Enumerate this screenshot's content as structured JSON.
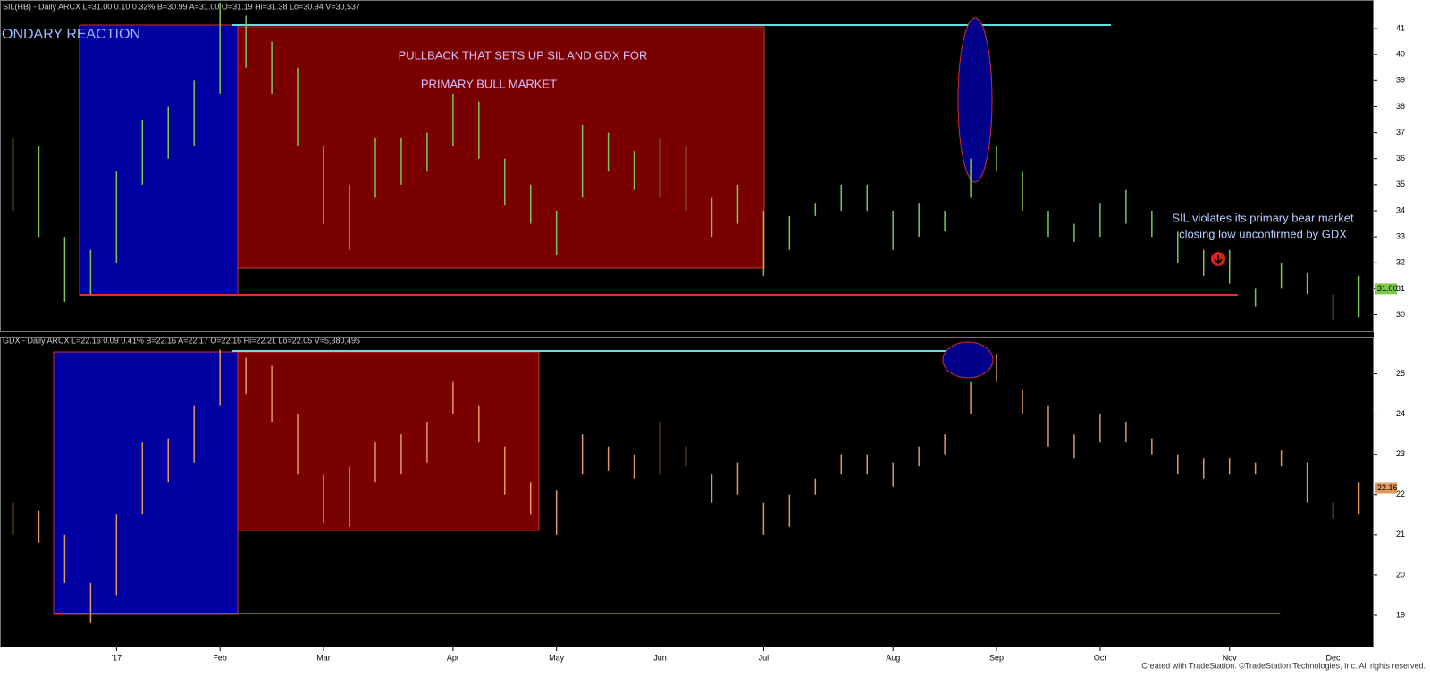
{
  "chart_data": [
    {
      "type": "ohlc",
      "header": "SIL(HB) - Daily  ARCX  L=31.00  0.10  0.32%  B=30.99  A=31.00  O=31.19  Hi=31.38  Lo=30.94  V=30,537",
      "color": "#7fc850",
      "high": [
        36.8,
        36.5,
        33,
        32.5,
        35.5,
        37.5,
        38,
        39,
        42,
        41.5,
        40.5,
        39.5,
        36.5,
        35,
        36.8,
        36.8,
        37,
        38.5,
        38.2,
        36,
        35,
        34,
        37.3,
        37,
        36.3,
        36.8,
        36.5,
        34.5,
        35,
        34,
        33.8,
        34.3,
        35,
        35,
        34,
        34.3,
        34,
        36,
        36.5,
        35.5,
        34,
        33.5,
        34.3,
        34.8,
        34,
        33.2,
        32.5,
        32.5,
        31,
        32,
        31.6,
        30.8,
        31.5
      ],
      "low": [
        34,
        33,
        30.5,
        30.8,
        32,
        35,
        36,
        36.5,
        38.5,
        39.5,
        38.5,
        36.5,
        33.5,
        32.5,
        34.5,
        35,
        35.5,
        36.5,
        36,
        34.2,
        33.5,
        32.3,
        34.5,
        35.5,
        34.8,
        34.5,
        34,
        33,
        33.5,
        31.5,
        32.5,
        33.8,
        34,
        34,
        32.5,
        33,
        33.2,
        34.5,
        35.5,
        34,
        33,
        32.8,
        33,
        33.5,
        33,
        32,
        31.5,
        31.2,
        30.3,
        31,
        30.8,
        29.8,
        29.9
      ],
      "ylim": [
        29.4,
        42.1
      ],
      "yticks": [
        30,
        31,
        32,
        33,
        34,
        35,
        36,
        37,
        38,
        39,
        40,
        41
      ],
      "last": {
        "value": 31,
        "label": "31.00"
      },
      "annotations": [
        "ONDARY REACTION",
        "PULLBACK THAT SETS UP SIL AND GDX FOR",
        "PRIMARY BULL MARKET",
        "SIL violates its primary bear market",
        "closing low unconfirmed by GDX"
      ]
    },
    {
      "type": "ohlc",
      "header": "GDX - Daily  ARCX  L=22.16  0.09  0.41%  B=22.16  A=22.17  O=22.16  Hi=22.21  Lo=22.05  V=5,380,495",
      "color": "#e09a60",
      "high": [
        21.8,
        21.6,
        21,
        19.8,
        21.5,
        23.3,
        23.4,
        24.2,
        25.6,
        25.4,
        25.2,
        24,
        22.5,
        22.7,
        23.3,
        23.5,
        23.8,
        24.8,
        24.2,
        23.2,
        22.3,
        22.1,
        23.5,
        23.2,
        23,
        23.8,
        23.2,
        22.5,
        22.8,
        21.8,
        22,
        22.4,
        23,
        23,
        22.8,
        23.2,
        23.5,
        24.8,
        25.5,
        24.6,
        24.2,
        23.5,
        24,
        23.8,
        23.4,
        23,
        22.9,
        22.9,
        22.8,
        23.1,
        22.8,
        21.8,
        22.3
      ],
      "low": [
        21,
        20.8,
        19.8,
        18.8,
        19.5,
        21.5,
        22.3,
        22.8,
        24.2,
        24.5,
        23.8,
        22.5,
        21.3,
        21.2,
        22.3,
        22.5,
        22.8,
        24,
        23.3,
        22,
        21.5,
        21,
        22.5,
        22.6,
        22.4,
        22.5,
        22.7,
        21.8,
        22,
        21,
        21.2,
        22,
        22.5,
        22.5,
        22.2,
        22.7,
        23,
        24,
        24.8,
        24,
        23.2,
        22.9,
        23.3,
        23.3,
        23,
        22.5,
        22.4,
        22.5,
        22.5,
        22.7,
        21.8,
        21.4,
        21.5
      ],
      "ylim": [
        18.2,
        25.9
      ],
      "yticks": [
        19,
        20,
        21,
        22,
        23,
        24,
        25
      ],
      "last": {
        "value": 22.16,
        "label": "22.16"
      },
      "categories": [
        null,
        null,
        null,
        null,
        "'17",
        null,
        null,
        null,
        "Feb",
        null,
        null,
        null,
        "Mar",
        null,
        null,
        null,
        null,
        "Apr",
        null,
        null,
        null,
        "May",
        null,
        null,
        null,
        "Jun",
        null,
        null,
        null,
        "Jul",
        null,
        null,
        null,
        null,
        "Aug",
        null,
        null,
        null,
        "Sep",
        null,
        null,
        null,
        "Oct",
        null,
        null,
        null,
        null,
        "Nov",
        null,
        null,
        null,
        "Dec",
        null
      ],
      "footer": "Created with TradeStation. ©TradeStation Technologies, Inc. All rights reserved."
    }
  ]
}
